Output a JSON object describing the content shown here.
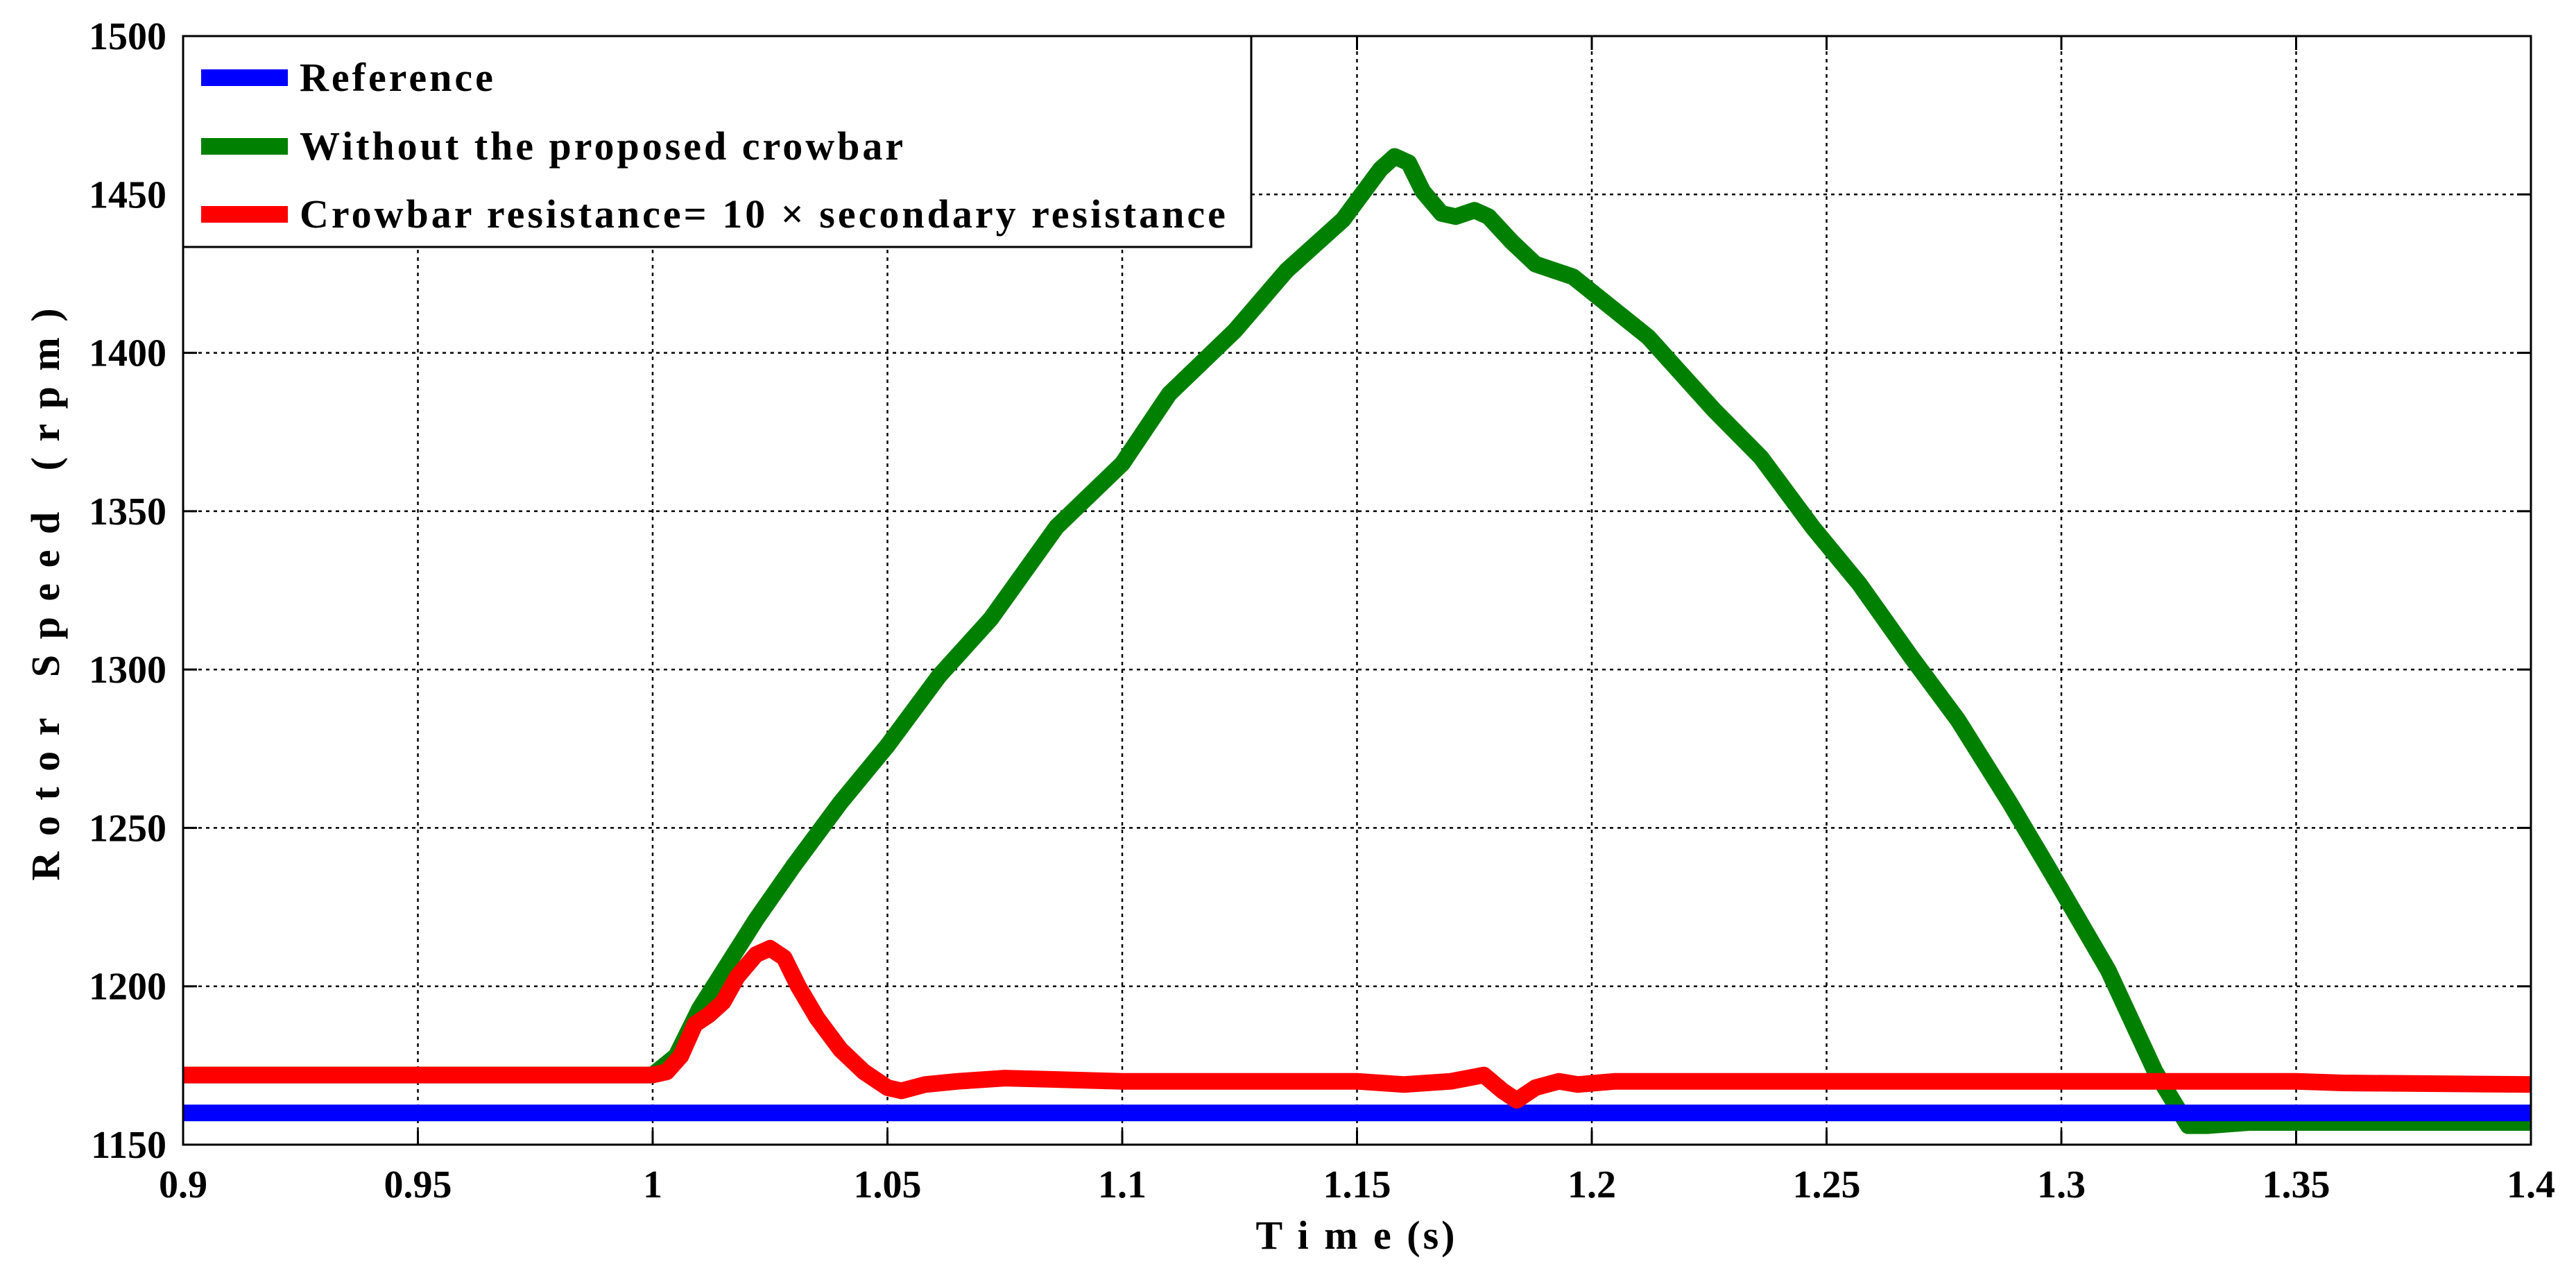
{
  "chart_data": {
    "type": "line",
    "xlabel": "T i m e (s)",
    "ylabel": "R o t o r   S p e e d   ( r p m )",
    "xlim": [
      0.9,
      1.4
    ],
    "ylim": [
      1150,
      1500
    ],
    "x_ticks": [
      0.9,
      0.95,
      1,
      1.05,
      1.1,
      1.15,
      1.2,
      1.25,
      1.3,
      1.35,
      1.4
    ],
    "x_tick_labels": [
      "0.9",
      "0.95",
      "1",
      "1.05",
      "1.1",
      "1.15",
      "1.2",
      "1.25",
      "1.3",
      "1.35",
      "1.4"
    ],
    "y_ticks": [
      1150,
      1200,
      1250,
      1300,
      1350,
      1400,
      1450,
      1500
    ],
    "y_tick_labels": [
      "1150",
      "1200",
      "1250",
      "1300",
      "1350",
      "1400",
      "1450",
      "1500"
    ],
    "grid": true,
    "legend": "top-left",
    "series": [
      {
        "name": "Reference",
        "color": "#0000FF",
        "x": [
          0.9,
          1.4
        ],
        "y": [
          1160,
          1160
        ]
      },
      {
        "name": "Without the proposed crowbar",
        "color": "#008000",
        "x": [
          0.9,
          1.0,
          1.005,
          1.01,
          1.022,
          1.03,
          1.04,
          1.05,
          1.061,
          1.072,
          1.086,
          1.1,
          1.11,
          1.124,
          1.135,
          1.147,
          1.155,
          1.158,
          1.161,
          1.164,
          1.168,
          1.171,
          1.175,
          1.178,
          1.183,
          1.188,
          1.196,
          1.212,
          1.226,
          1.236,
          1.247,
          1.257,
          1.268,
          1.278,
          1.289,
          1.299,
          1.31,
          1.32,
          1.327,
          1.331,
          1.34,
          1.4
        ],
        "y": [
          1172,
          1172,
          1178,
          1193,
          1221,
          1238,
          1258,
          1276,
          1298,
          1316,
          1345,
          1365,
          1387,
          1407,
          1426,
          1442,
          1458,
          1462,
          1460,
          1451,
          1444,
          1443,
          1445,
          1443,
          1435,
          1428,
          1424,
          1405,
          1382,
          1367,
          1345,
          1327,
          1304,
          1284,
          1258,
          1233,
          1205,
          1173,
          1156,
          1156,
          1157,
          1157
        ]
      },
      {
        "name": "Crowbar resistance= 10 × secondary resistance",
        "color": "#FF0000",
        "x": [
          0.9,
          1.0,
          1.003,
          1.006,
          1.009,
          1.012,
          1.015,
          1.018,
          1.022,
          1.025,
          1.028,
          1.031,
          1.035,
          1.04,
          1.045,
          1.05,
          1.053,
          1.058,
          1.065,
          1.075,
          1.1,
          1.13,
          1.15,
          1.16,
          1.17,
          1.177,
          1.181,
          1.184,
          1.188,
          1.193,
          1.197,
          1.205,
          1.3,
          1.35,
          1.36,
          1.4
        ],
        "y": [
          1172,
          1172,
          1173,
          1178,
          1188,
          1191,
          1195,
          1203,
          1210,
          1212,
          1209,
          1200,
          1190,
          1180,
          1173,
          1168,
          1167,
          1169,
          1170,
          1171,
          1170,
          1170,
          1170,
          1169,
          1170,
          1172,
          1167,
          1164,
          1168,
          1170,
          1169,
          1170,
          1170,
          1170,
          1169.5,
          1169
        ]
      }
    ]
  }
}
